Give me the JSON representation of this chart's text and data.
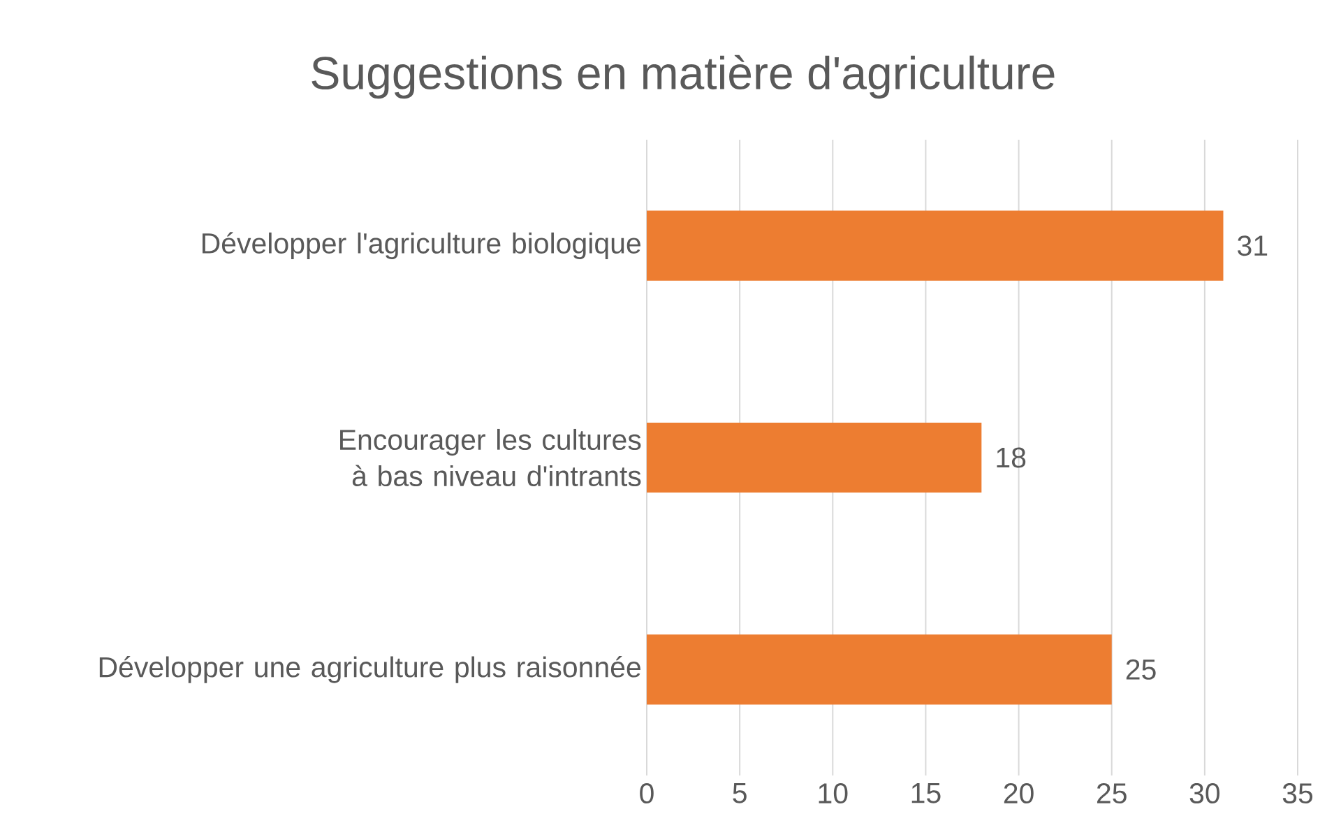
{
  "chart_data": {
    "type": "bar",
    "orientation": "horizontal",
    "title": "Suggestions en matière d'agriculture",
    "categories": [
      "Développer l'agriculture biologique",
      "Encourager les cultures à bas niveau d'intrants",
      "Développer une agriculture plus raisonnée"
    ],
    "values": [
      31,
      18,
      25
    ],
    "color": "#ed7d31",
    "xlim": [
      0,
      35
    ],
    "xticks": [
      0,
      5,
      10,
      15,
      20,
      25,
      30,
      35
    ],
    "grid": "x",
    "data_labels": true
  }
}
